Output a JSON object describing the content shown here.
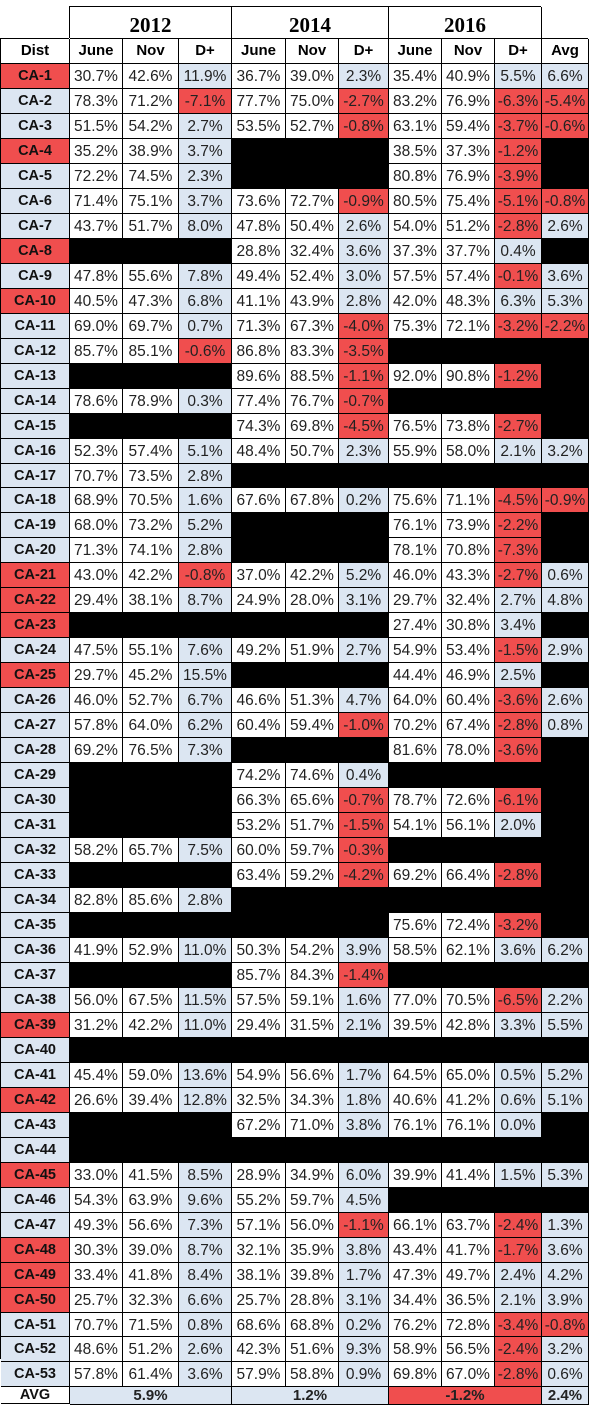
{
  "table": {
    "years": [
      "2012",
      "2014",
      "2016"
    ],
    "headers": [
      "Dist",
      "June",
      "Nov",
      "D+",
      "June",
      "Nov",
      "D+",
      "June",
      "Nov",
      "D+",
      "Avg"
    ],
    "rows": [
      [
        "CA-1",
        "r",
        "30.7%",
        "42.6%",
        "11.9%",
        "36.7%",
        "39.0%",
        "2.3%",
        "35.4%",
        "40.9%",
        "5.5%",
        "6.6%"
      ],
      [
        "CA-2",
        "b",
        "78.3%",
        "71.2%",
        "-7.1%",
        "77.7%",
        "75.0%",
        "-2.7%",
        "83.2%",
        "76.9%",
        "-6.3%",
        "-5.4%"
      ],
      [
        "CA-3",
        "b",
        "51.5%",
        "54.2%",
        "2.7%",
        "53.5%",
        "52.7%",
        "-0.8%",
        "63.1%",
        "59.4%",
        "-3.7%",
        "-0.6%"
      ],
      [
        "CA-4",
        "r",
        "35.2%",
        "38.9%",
        "3.7%",
        "",
        "",
        "",
        "38.5%",
        "37.3%",
        "-1.2%",
        ""
      ],
      [
        "CA-5",
        "b",
        "72.2%",
        "74.5%",
        "2.3%",
        "",
        "",
        "",
        "80.8%",
        "76.9%",
        "-3.9%",
        ""
      ],
      [
        "CA-6",
        "b",
        "71.4%",
        "75.1%",
        "3.7%",
        "73.6%",
        "72.7%",
        "-0.9%",
        "80.5%",
        "75.4%",
        "-5.1%",
        "-0.8%"
      ],
      [
        "CA-7",
        "b",
        "43.7%",
        "51.7%",
        "8.0%",
        "47.8%",
        "50.4%",
        "2.6%",
        "54.0%",
        "51.2%",
        "-2.8%",
        "2.6%"
      ],
      [
        "CA-8",
        "r",
        "",
        "",
        "",
        "28.8%",
        "32.4%",
        "3.6%",
        "37.3%",
        "37.7%",
        "0.4%",
        ""
      ],
      [
        "CA-9",
        "b",
        "47.8%",
        "55.6%",
        "7.8%",
        "49.4%",
        "52.4%",
        "3.0%",
        "57.5%",
        "57.4%",
        "-0.1%",
        "3.6%"
      ],
      [
        "CA-10",
        "r",
        "40.5%",
        "47.3%",
        "6.8%",
        "41.1%",
        "43.9%",
        "2.8%",
        "42.0%",
        "48.3%",
        "6.3%",
        "5.3%"
      ],
      [
        "CA-11",
        "b",
        "69.0%",
        "69.7%",
        "0.7%",
        "71.3%",
        "67.3%",
        "-4.0%",
        "75.3%",
        "72.1%",
        "-3.2%",
        "-2.2%"
      ],
      [
        "CA-12",
        "b",
        "85.7%",
        "85.1%",
        "-0.6%",
        "86.8%",
        "83.3%",
        "-3.5%",
        "",
        "",
        "",
        ""
      ],
      [
        "CA-13",
        "b",
        "",
        "",
        "",
        "89.6%",
        "88.5%",
        "-1.1%",
        "92.0%",
        "90.8%",
        "-1.2%",
        ""
      ],
      [
        "CA-14",
        "b",
        "78.6%",
        "78.9%",
        "0.3%",
        "77.4%",
        "76.7%",
        "-0.7%",
        "",
        "",
        "",
        ""
      ],
      [
        "CA-15",
        "b",
        "",
        "",
        "",
        "74.3%",
        "69.8%",
        "-4.5%",
        "76.5%",
        "73.8%",
        "-2.7%",
        ""
      ],
      [
        "CA-16",
        "b",
        "52.3%",
        "57.4%",
        "5.1%",
        "48.4%",
        "50.7%",
        "2.3%",
        "55.9%",
        "58.0%",
        "2.1%",
        "3.2%"
      ],
      [
        "CA-17",
        "b",
        "70.7%",
        "73.5%",
        "2.8%",
        "",
        "",
        "",
        "",
        "",
        "",
        ""
      ],
      [
        "CA-18",
        "b",
        "68.9%",
        "70.5%",
        "1.6%",
        "67.6%",
        "67.8%",
        "0.2%",
        "75.6%",
        "71.1%",
        "-4.5%",
        "-0.9%"
      ],
      [
        "CA-19",
        "b",
        "68.0%",
        "73.2%",
        "5.2%",
        "",
        "",
        "",
        "76.1%",
        "73.9%",
        "-2.2%",
        ""
      ],
      [
        "CA-20",
        "b",
        "71.3%",
        "74.1%",
        "2.8%",
        "",
        "",
        "",
        "78.1%",
        "70.8%",
        "-7.3%",
        ""
      ],
      [
        "CA-21",
        "r",
        "43.0%",
        "42.2%",
        "-0.8%",
        "37.0%",
        "42.2%",
        "5.2%",
        "46.0%",
        "43.3%",
        "-2.7%",
        "0.6%"
      ],
      [
        "CA-22",
        "r",
        "29.4%",
        "38.1%",
        "8.7%",
        "24.9%",
        "28.0%",
        "3.1%",
        "29.7%",
        "32.4%",
        "2.7%",
        "4.8%"
      ],
      [
        "CA-23",
        "r",
        "",
        "",
        "",
        "",
        "",
        "",
        "27.4%",
        "30.8%",
        "3.4%",
        ""
      ],
      [
        "CA-24",
        "b",
        "47.5%",
        "55.1%",
        "7.6%",
        "49.2%",
        "51.9%",
        "2.7%",
        "54.9%",
        "53.4%",
        "-1.5%",
        "2.9%"
      ],
      [
        "CA-25",
        "r",
        "29.7%",
        "45.2%",
        "15.5%",
        "",
        "",
        "",
        "44.4%",
        "46.9%",
        "2.5%",
        ""
      ],
      [
        "CA-26",
        "b",
        "46.0%",
        "52.7%",
        "6.7%",
        "46.6%",
        "51.3%",
        "4.7%",
        "64.0%",
        "60.4%",
        "-3.6%",
        "2.6%"
      ],
      [
        "CA-27",
        "b",
        "57.8%",
        "64.0%",
        "6.2%",
        "60.4%",
        "59.4%",
        "-1.0%",
        "70.2%",
        "67.4%",
        "-2.8%",
        "0.8%"
      ],
      [
        "CA-28",
        "b",
        "69.2%",
        "76.5%",
        "7.3%",
        "",
        "",
        "",
        "81.6%",
        "78.0%",
        "-3.6%",
        ""
      ],
      [
        "CA-29",
        "b",
        "",
        "",
        "",
        "74.2%",
        "74.6%",
        "0.4%",
        "",
        "",
        "",
        ""
      ],
      [
        "CA-30",
        "b",
        "",
        "",
        "",
        "66.3%",
        "65.6%",
        "-0.7%",
        "78.7%",
        "72.6%",
        "-6.1%",
        ""
      ],
      [
        "CA-31",
        "b",
        "",
        "",
        "",
        "53.2%",
        "51.7%",
        "-1.5%",
        "54.1%",
        "56.1%",
        "2.0%",
        ""
      ],
      [
        "CA-32",
        "b",
        "58.2%",
        "65.7%",
        "7.5%",
        "60.0%",
        "59.7%",
        "-0.3%",
        "",
        "",
        "",
        ""
      ],
      [
        "CA-33",
        "b",
        "",
        "",
        "",
        "63.4%",
        "59.2%",
        "-4.2%",
        "69.2%",
        "66.4%",
        "-2.8%",
        ""
      ],
      [
        "CA-34",
        "b",
        "82.8%",
        "85.6%",
        "2.8%",
        "",
        "",
        "",
        "",
        "",
        "",
        ""
      ],
      [
        "CA-35",
        "b",
        "",
        "",
        "",
        "",
        "",
        "",
        "75.6%",
        "72.4%",
        "-3.2%",
        ""
      ],
      [
        "CA-36",
        "b",
        "41.9%",
        "52.9%",
        "11.0%",
        "50.3%",
        "54.2%",
        "3.9%",
        "58.5%",
        "62.1%",
        "3.6%",
        "6.2%"
      ],
      [
        "CA-37",
        "b",
        "",
        "",
        "",
        "85.7%",
        "84.3%",
        "-1.4%",
        "",
        "",
        "",
        ""
      ],
      [
        "CA-38",
        "b",
        "56.0%",
        "67.5%",
        "11.5%",
        "57.5%",
        "59.1%",
        "1.6%",
        "77.0%",
        "70.5%",
        "-6.5%",
        "2.2%"
      ],
      [
        "CA-39",
        "r",
        "31.2%",
        "42.2%",
        "11.0%",
        "29.4%",
        "31.5%",
        "2.1%",
        "39.5%",
        "42.8%",
        "3.3%",
        "5.5%"
      ],
      [
        "CA-40",
        "b",
        "",
        "",
        "",
        "",
        "",
        "",
        "",
        "",
        "",
        ""
      ],
      [
        "CA-41",
        "b",
        "45.4%",
        "59.0%",
        "13.6%",
        "54.9%",
        "56.6%",
        "1.7%",
        "64.5%",
        "65.0%",
        "0.5%",
        "5.2%"
      ],
      [
        "CA-42",
        "r",
        "26.6%",
        "39.4%",
        "12.8%",
        "32.5%",
        "34.3%",
        "1.8%",
        "40.6%",
        "41.2%",
        "0.6%",
        "5.1%"
      ],
      [
        "CA-43",
        "b",
        "",
        "",
        "",
        "67.2%",
        "71.0%",
        "3.8%",
        "76.1%",
        "76.1%",
        "0.0%",
        ""
      ],
      [
        "CA-44",
        "b",
        "",
        "",
        "",
        "",
        "",
        "",
        "",
        "",
        "",
        ""
      ],
      [
        "CA-45",
        "r",
        "33.0%",
        "41.5%",
        "8.5%",
        "28.9%",
        "34.9%",
        "6.0%",
        "39.9%",
        "41.4%",
        "1.5%",
        "5.3%"
      ],
      [
        "CA-46",
        "b",
        "54.3%",
        "63.9%",
        "9.6%",
        "55.2%",
        "59.7%",
        "4.5%",
        "",
        "",
        "",
        ""
      ],
      [
        "CA-47",
        "b",
        "49.3%",
        "56.6%",
        "7.3%",
        "57.1%",
        "56.0%",
        "-1.1%",
        "66.1%",
        "63.7%",
        "-2.4%",
        "1.3%"
      ],
      [
        "CA-48",
        "r",
        "30.3%",
        "39.0%",
        "8.7%",
        "32.1%",
        "35.9%",
        "3.8%",
        "43.4%",
        "41.7%",
        "-1.7%",
        "3.6%"
      ],
      [
        "CA-49",
        "r",
        "33.4%",
        "41.8%",
        "8.4%",
        "38.1%",
        "39.8%",
        "1.7%",
        "47.3%",
        "49.7%",
        "2.4%",
        "4.2%"
      ],
      [
        "CA-50",
        "r",
        "25.7%",
        "32.3%",
        "6.6%",
        "25.7%",
        "28.8%",
        "3.1%",
        "34.4%",
        "36.5%",
        "2.1%",
        "3.9%"
      ],
      [
        "CA-51",
        "b",
        "70.7%",
        "71.5%",
        "0.8%",
        "68.6%",
        "68.8%",
        "0.2%",
        "76.2%",
        "72.8%",
        "-3.4%",
        "-0.8%"
      ],
      [
        "CA-52",
        "b",
        "48.6%",
        "51.2%",
        "2.6%",
        "42.3%",
        "51.6%",
        "9.3%",
        "58.9%",
        "56.5%",
        "-2.4%",
        "3.2%"
      ],
      [
        "CA-53",
        "b",
        "57.8%",
        "61.4%",
        "3.6%",
        "57.9%",
        "58.8%",
        "0.9%",
        "69.8%",
        "67.0%",
        "-2.8%",
        "0.6%"
      ]
    ],
    "avg_row": {
      "label": "AVG",
      "values": [
        "5.9%",
        "1.2%",
        "-1.2%",
        "2.4%"
      ]
    },
    "colors": {
      "red": "#f04e4e",
      "blue": "#dce6f2",
      "black": "#000000",
      "white": "#ffffff"
    }
  }
}
